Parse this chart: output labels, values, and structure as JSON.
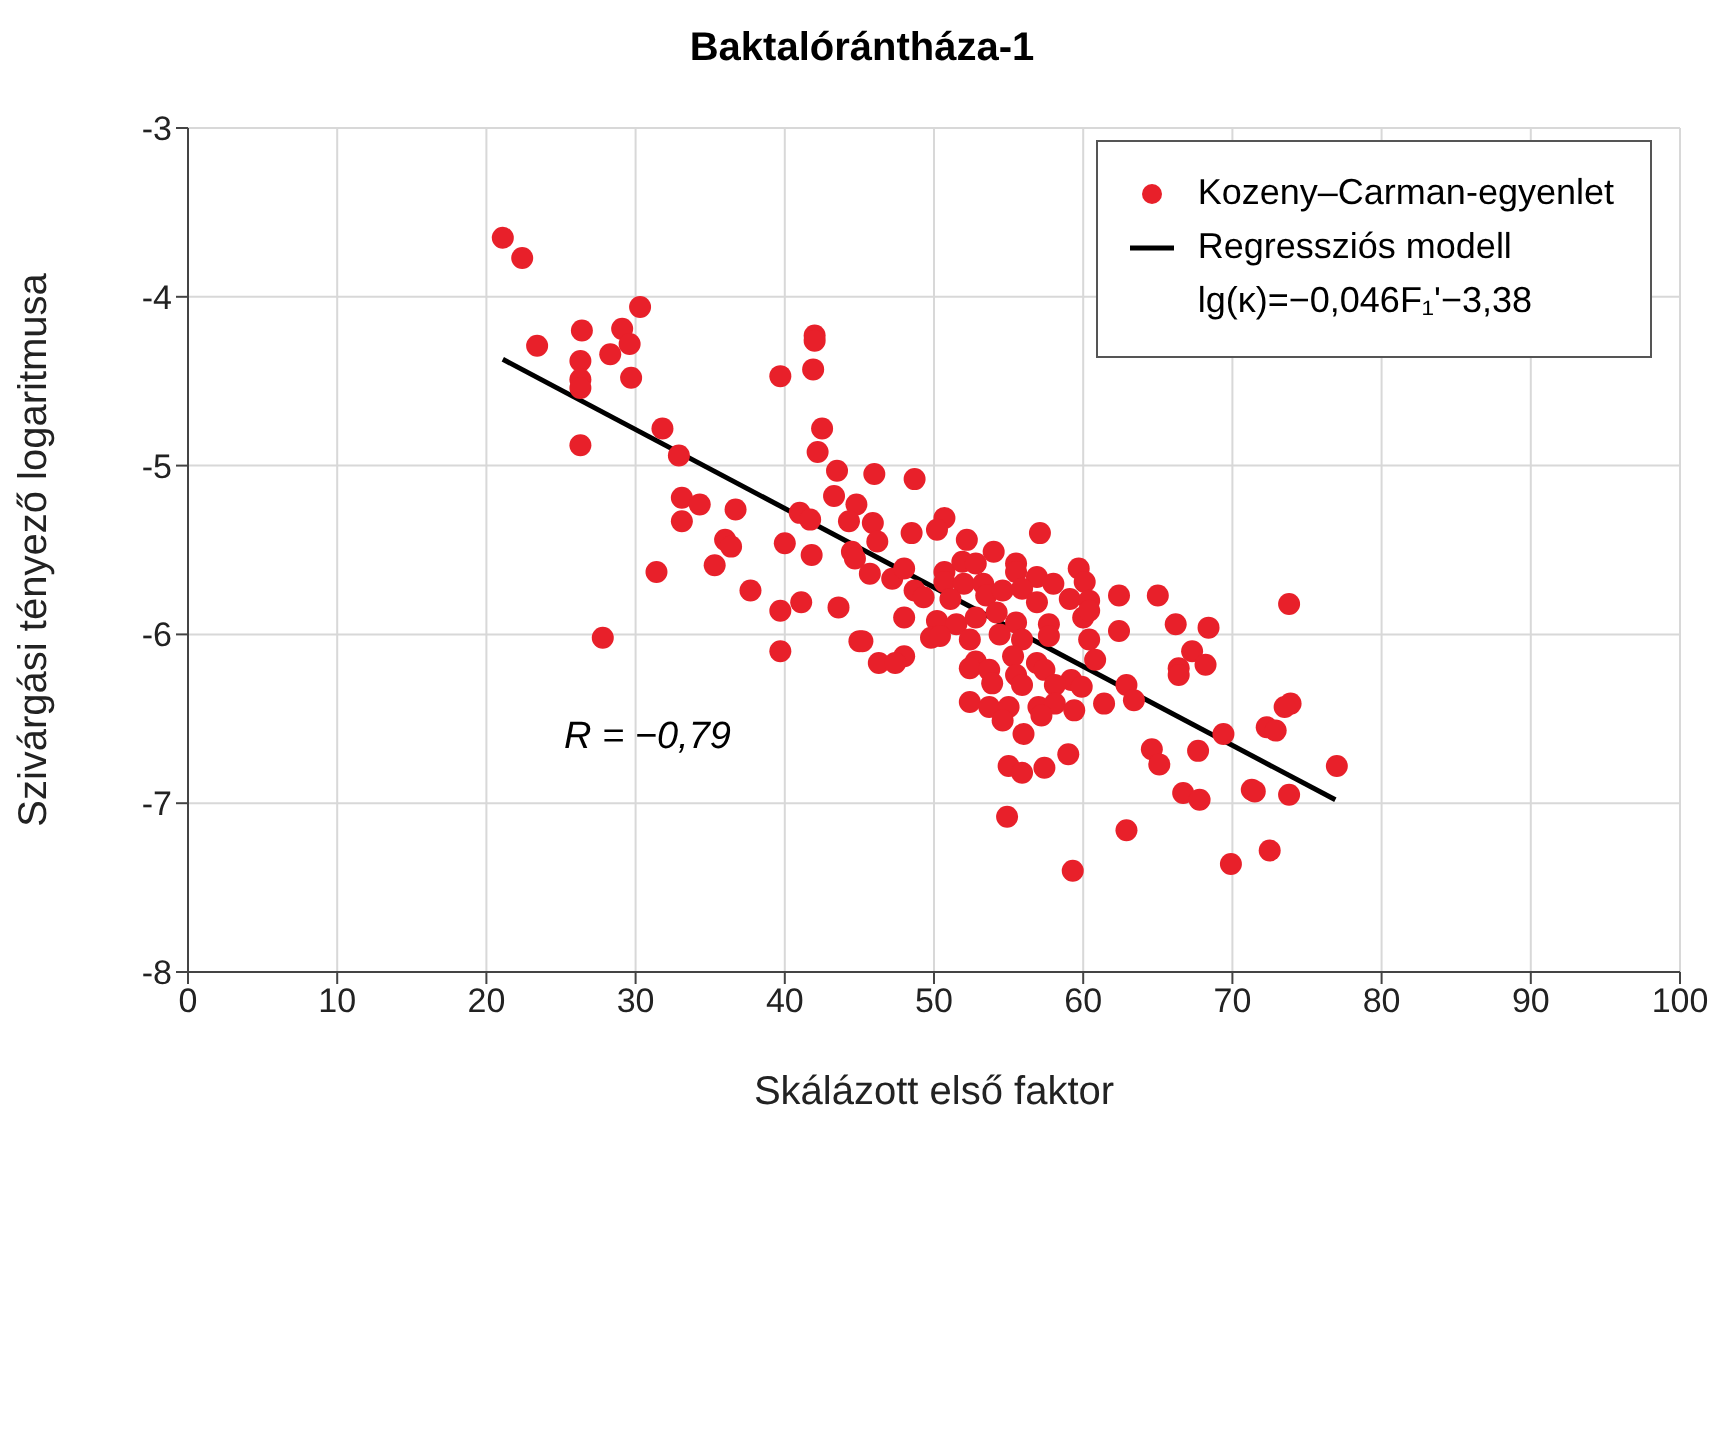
{
  "chart_data": {
    "type": "scatter",
    "title": "Baktalórántháza-1",
    "xlabel": "Skálázott első faktor",
    "ylabel": "Szivárgási tényező logaritmusa",
    "annotations": [
      "lg(κ)=−0,046F₁'−3,38",
      "R = −0,79"
    ],
    "xlim": [
      0,
      100
    ],
    "xticks": [
      0,
      10,
      20,
      30,
      40,
      50,
      60,
      70,
      80,
      90,
      100
    ],
    "ylim": [
      -8,
      -3
    ],
    "yticks": [
      -8,
      -7,
      -6,
      -5,
      -4,
      -3
    ],
    "grid": true,
    "legend": "top right",
    "marker": "circle",
    "series": [
      {
        "name": "Kozeny–Carman-egyenlet",
        "color": "#e8202a",
        "x": [
          21.1,
          22.4,
          30.3,
          26.4,
          29.1,
          23.4,
          29.6,
          28.3,
          26.3,
          26.3,
          26.3,
          29.7,
          42.0,
          42.0,
          41.9,
          39.7,
          26.3,
          31.8,
          32.9,
          42.5,
          42.2,
          43.5,
          46.0,
          33.1,
          34.3,
          36.7,
          33.1,
          43.3,
          44.8,
          41.0,
          41.7,
          44.3,
          45.9,
          36.0,
          36.4,
          40.0,
          46.2,
          41.8,
          35.3,
          44.5,
          44.7,
          45.7,
          47.2,
          31.4,
          37.7,
          39.7,
          41.1,
          43.6,
          27.8,
          45.0,
          48.7,
          50.7,
          50.2,
          48.5,
          52.2,
          57.1,
          54.0,
          48.0,
          50.7,
          51.9,
          52.8,
          55.5,
          55.5,
          50.7,
          52.0,
          53.3,
          56.9,
          58.0,
          59.7,
          60.1,
          48.7,
          49.3,
          51.1,
          53.5,
          54.6,
          55.9,
          56.9,
          59.1,
          60.4,
          62.4,
          65.0,
          48.0,
          50.2,
          51.5,
          52.8,
          54.2,
          55.5,
          57.7,
          60.0,
          60.4,
          66.2,
          68.4,
          62.4,
          49.8,
          50.4,
          52.4,
          54.4,
          55.9,
          57.7,
          60.4,
          45.2,
          39.7,
          55.3,
          52.8,
          56.9,
          60.8,
          67.3,
          46.3,
          48.0,
          47.4,
          52.4,
          53.7,
          55.5,
          57.4,
          59.2,
          66.4,
          68.2,
          66.4,
          53.9,
          55.9,
          58.1,
          59.9,
          62.9,
          63.4,
          52.4,
          53.7,
          55.0,
          57.0,
          58.1,
          59.4,
          61.4,
          54.6,
          57.2,
          56.0,
          69.4,
          64.6,
          65.1,
          67.7,
          59.0,
          55.0,
          55.9,
          57.4,
          66.7,
          67.8,
          71.3,
          73.9,
          73.5,
          72.3,
          72.9,
          77.0,
          73.8,
          71.5,
          62.9,
          72.5,
          69.9,
          59.3,
          54.9,
          73.8
        ],
        "values": [
          -3.65,
          -3.77,
          -4.06,
          -4.2,
          -4.19,
          -4.29,
          -4.28,
          -4.34,
          -4.38,
          -4.49,
          -4.54,
          -4.48,
          -4.23,
          -4.26,
          -4.43,
          -4.47,
          -4.88,
          -4.78,
          -4.94,
          -4.78,
          -4.92,
          -5.03,
          -5.05,
          -5.19,
          -5.23,
          -5.26,
          -5.33,
          -5.18,
          -5.23,
          -5.28,
          -5.32,
          -5.33,
          -5.34,
          -5.44,
          -5.48,
          -5.46,
          -5.45,
          -5.53,
          -5.59,
          -5.51,
          -5.55,
          -5.64,
          -5.67,
          -5.63,
          -5.74,
          -5.86,
          -5.81,
          -5.84,
          -6.02,
          -6.04,
          -5.08,
          -5.31,
          -5.38,
          -5.4,
          -5.44,
          -5.4,
          -5.51,
          -5.61,
          -5.63,
          -5.57,
          -5.58,
          -5.58,
          -5.63,
          -5.69,
          -5.7,
          -5.7,
          -5.66,
          -5.7,
          -5.61,
          -5.69,
          -5.74,
          -5.78,
          -5.79,
          -5.77,
          -5.74,
          -5.73,
          -5.81,
          -5.79,
          -5.8,
          -5.77,
          -5.77,
          -5.9,
          -5.92,
          -5.94,
          -5.9,
          -5.87,
          -5.93,
          -5.94,
          -5.9,
          -5.86,
          -5.94,
          -5.96,
          -5.98,
          -6.02,
          -6.01,
          -6.03,
          -6.0,
          -6.03,
          -6.01,
          -6.03,
          -6.04,
          -6.1,
          -6.13,
          -6.16,
          -6.17,
          -6.15,
          -6.1,
          -6.17,
          -6.13,
          -6.17,
          -6.2,
          -6.21,
          -6.24,
          -6.21,
          -6.27,
          -6.2,
          -6.18,
          -6.24,
          -6.29,
          -6.3,
          -6.3,
          -6.31,
          -6.3,
          -6.39,
          -6.4,
          -6.43,
          -6.43,
          -6.43,
          -6.41,
          -6.45,
          -6.41,
          -6.51,
          -6.48,
          -6.59,
          -6.59,
          -6.68,
          -6.77,
          -6.69,
          -6.71,
          -6.78,
          -6.82,
          -6.79,
          -6.94,
          -6.98,
          -6.92,
          -6.41,
          -6.43,
          -6.55,
          -6.57,
          -6.78,
          -6.95,
          -6.93,
          -7.16,
          -7.28,
          -7.36,
          -7.4,
          -7.08,
          -5.82
        ]
      },
      {
        "name": "Regressziós modell",
        "color": "#000000",
        "type": "line",
        "marker": "none",
        "line_style": "solid",
        "x": [
          21.1,
          76.9
        ],
        "values": [
          -4.37,
          -6.98
        ]
      }
    ]
  }
}
